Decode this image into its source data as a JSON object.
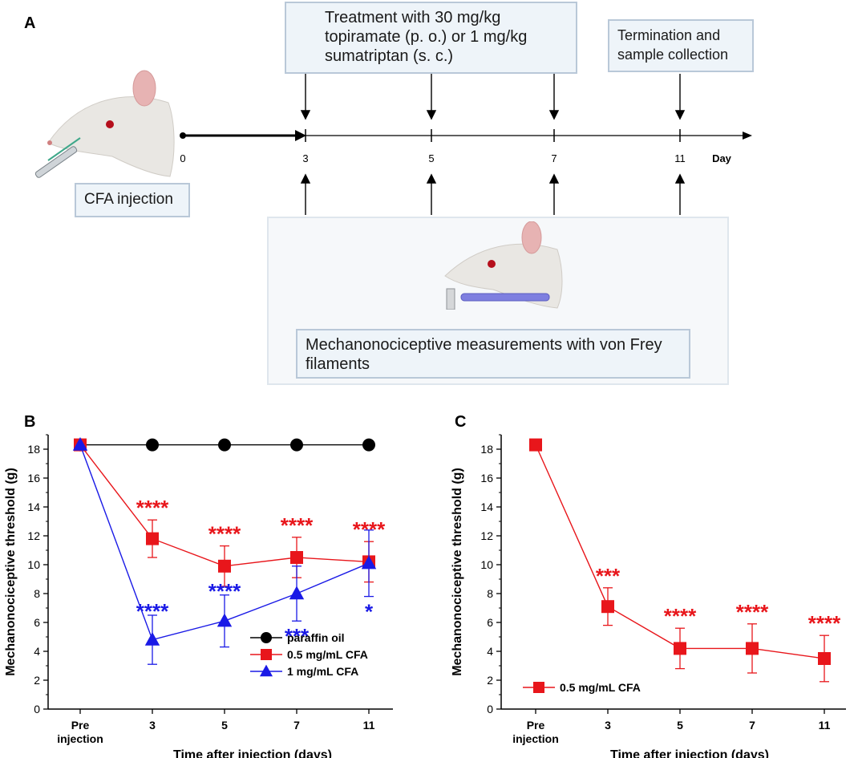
{
  "panelA": {
    "letter": "A",
    "treatment_box": "Treatment with 30 mg/kg topiramate (p. o.) or 1 mg/kg sumatriptan (s. c.)",
    "termination_box": "Termination and sample collection",
    "cfa_box": "CFA injection",
    "measurement_box": "Mechanonociceptive measurements with von Frey filaments",
    "timeline": {
      "ticks": [
        "0",
        "3",
        "5",
        "7",
        "11"
      ],
      "unit": "Day"
    }
  },
  "chart_data": [
    {
      "panel": "B",
      "type": "line",
      "title": "",
      "xlabel": "Time after injection (days)",
      "ylabel": "Mechanonociceptive threshold (g)",
      "categories": [
        "Pre injection",
        "3",
        "5",
        "7",
        "11"
      ],
      "ylim": [
        0,
        19
      ],
      "yticks": [
        0,
        2,
        4,
        6,
        8,
        10,
        12,
        14,
        16,
        18
      ],
      "series": [
        {
          "name": "paraffin oil",
          "color": "#000000",
          "marker": "circle",
          "values": [
            18.3,
            18.3,
            18.3,
            18.3,
            18.3
          ],
          "err": [
            0,
            0,
            0,
            0,
            0
          ],
          "annotations": [
            "",
            "",
            "",
            "",
            ""
          ]
        },
        {
          "name": "0.5 mg/mL CFA",
          "color": "#e8161b",
          "marker": "square",
          "values": [
            18.3,
            11.8,
            9.9,
            10.5,
            10.2
          ],
          "err": [
            0,
            1.3,
            1.4,
            1.4,
            1.4
          ],
          "annotations": [
            "",
            "****",
            "****",
            "****",
            "****"
          ]
        },
        {
          "name": "1 mg/mL CFA",
          "color": "#1a1ae6",
          "marker": "triangle",
          "values": [
            18.3,
            4.8,
            6.1,
            8.0,
            10.1
          ],
          "err": [
            0,
            1.7,
            1.8,
            1.9,
            2.3
          ],
          "annotations": [
            "",
            "****",
            "****",
            "***",
            "*"
          ]
        }
      ],
      "legend": "bottom-right"
    },
    {
      "panel": "C",
      "type": "line",
      "title": "",
      "xlabel": "Time after injection (days)",
      "ylabel": "Mechanonociceptive threshold (g)",
      "categories": [
        "Pre injection",
        "3",
        "5",
        "7",
        "11"
      ],
      "ylim": [
        0,
        19
      ],
      "yticks": [
        0,
        2,
        4,
        6,
        8,
        10,
        12,
        14,
        16,
        18
      ],
      "series": [
        {
          "name": "0.5 mg/mL CFA",
          "color": "#e8161b",
          "marker": "square",
          "values": [
            18.3,
            7.1,
            4.2,
            4.2,
            3.5
          ],
          "err": [
            0,
            1.3,
            1.4,
            1.7,
            1.6
          ],
          "annotations": [
            "",
            "***",
            "****",
            "****",
            "****"
          ]
        }
      ],
      "legend": "bottom-left"
    }
  ]
}
